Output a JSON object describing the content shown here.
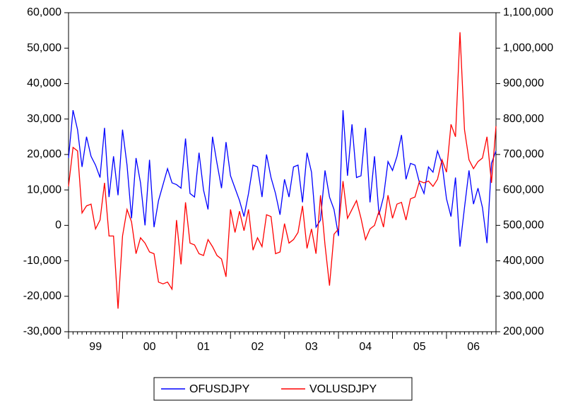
{
  "chart_data": {
    "type": "line",
    "categories": [
      null,
      null,
      null,
      null,
      null,
      null,
      "99",
      null,
      null,
      null,
      null,
      null,
      null,
      null,
      null,
      null,
      null,
      null,
      "00",
      null,
      null,
      null,
      null,
      null,
      null,
      null,
      null,
      null,
      null,
      null,
      "01",
      null,
      null,
      null,
      null,
      null,
      null,
      null,
      null,
      null,
      null,
      null,
      "02",
      null,
      null,
      null,
      null,
      null,
      null,
      null,
      null,
      null,
      null,
      null,
      "03",
      null,
      null,
      null,
      null,
      null,
      null,
      null,
      null,
      null,
      null,
      null,
      "04",
      null,
      null,
      null,
      null,
      null,
      null,
      null,
      null,
      null,
      null,
      null,
      "05",
      null,
      null,
      null,
      null,
      null,
      null,
      null,
      null,
      null,
      null,
      null,
      "06",
      null,
      null,
      null,
      null,
      null
    ],
    "series": [
      {
        "name": "OFUSDJPY",
        "color": "#0000ff",
        "values": [
          19000,
          32500,
          27000,
          16500,
          25000,
          19500,
          17000,
          13500,
          27500,
          8000,
          19500,
          8500,
          27000,
          17000,
          2000,
          19000,
          12000,
          0,
          18500,
          -500,
          7000,
          11500,
          16000,
          12000,
          11500,
          10500,
          24500,
          9000,
          8000,
          20500,
          10000,
          4500,
          25000,
          17500,
          10500,
          23500,
          14000,
          10500,
          7000,
          2500,
          9000,
          17000,
          16500,
          8000,
          20000,
          13500,
          9000,
          3000,
          13000,
          8000,
          16500,
          17000,
          6500,
          20500,
          15000,
          -500,
          1500,
          15500,
          8000,
          4500,
          -3000,
          32500,
          14000,
          28500,
          13500,
          14000,
          27500,
          6500,
          19500,
          3000,
          8000,
          18000,
          15500,
          19500,
          25500,
          13000,
          17500,
          17000,
          12000,
          9000,
          16500,
          15000,
          21000,
          17500,
          7500,
          2500,
          13500,
          -6000,
          5000,
          15500,
          6000,
          10500,
          5000,
          -5000,
          17500,
          21000
        ]
      },
      {
        "name": "VOLUSDJPY",
        "color": "#ff0000",
        "axis": "y2",
        "values": [
          610000,
          720000,
          710000,
          535000,
          555000,
          560000,
          490000,
          515000,
          620000,
          470000,
          470000,
          265000,
          470000,
          545000,
          510000,
          420000,
          465000,
          450000,
          425000,
          420000,
          340000,
          335000,
          340000,
          320000,
          515000,
          390000,
          565000,
          450000,
          445000,
          420000,
          415000,
          460000,
          440000,
          415000,
          405000,
          355000,
          545000,
          480000,
          540000,
          485000,
          545000,
          430000,
          465000,
          440000,
          530000,
          525000,
          420000,
          425000,
          505000,
          450000,
          460000,
          480000,
          555000,
          435000,
          490000,
          420000,
          585000,
          445000,
          330000,
          475000,
          490000,
          625000,
          520000,
          545000,
          570000,
          520000,
          460000,
          490000,
          500000,
          540000,
          495000,
          585000,
          520000,
          560000,
          565000,
          515000,
          575000,
          580000,
          625000,
          620000,
          625000,
          610000,
          630000,
          685000,
          650000,
          785000,
          750000,
          1045000,
          770000,
          685000,
          660000,
          680000,
          690000,
          750000,
          620000,
          780000
        ]
      }
    ],
    "ylim": [
      -30000,
      60000
    ],
    "yticks": [
      {
        "value": -30000,
        "label": "-30,000"
      },
      {
        "value": -20000,
        "label": "-20,000"
      },
      {
        "value": -10000,
        "label": "-10,000"
      },
      0,
      {
        "value": 10000,
        "label": "10,000"
      },
      {
        "value": 20000,
        "label": "20,000"
      },
      {
        "value": 30000,
        "label": "30,000"
      },
      {
        "value": 40000,
        "label": "40,000"
      },
      {
        "value": 50000,
        "label": "50,000"
      },
      {
        "value": 60000,
        "label": "60,000"
      }
    ],
    "y2lim": [
      200000,
      1100000
    ],
    "y2ticks": [
      {
        "value": 200000,
        "label": "200,000"
      },
      {
        "value": 300000,
        "label": "300,000"
      },
      {
        "value": 400000,
        "label": "400,000"
      },
      {
        "value": 500000,
        "label": "500,000"
      },
      {
        "value": 600000,
        "label": "600,000"
      },
      {
        "value": 700000,
        "label": "700,000"
      },
      {
        "value": 800000,
        "label": "800,000"
      },
      {
        "value": 900000,
        "label": "900,000"
      },
      {
        "value": 1000000,
        "label": "1,000,000"
      },
      {
        "value": 1100000,
        "label": "1,100,000"
      }
    ]
  }
}
